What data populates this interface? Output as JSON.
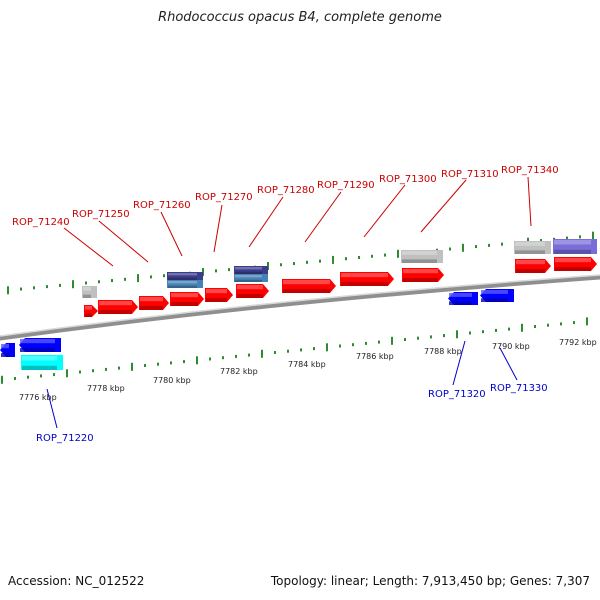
{
  "title": "Rhodococcus opacus B4, complete genome",
  "footer": {
    "accession": "Accession: NC_012522",
    "summary": "Topology: linear; Length: 7,913,450 bp; Genes: 7,307"
  },
  "colors": {
    "forward_gene": "#ff0000",
    "reverse_gene": "#0000ff",
    "cyan_feature": "#00ffff",
    "gray_feature": "#c0c0c0",
    "navy_feature": "#3c3c8c",
    "steel_feature": "#4682b4",
    "violet_feature": "#7a6cd9",
    "tick": "#2e8b2e",
    "forward_label": "#cc0000",
    "reverse_label": "#0000cc"
  },
  "ruler_labels": [
    "7776 kbp",
    "7778 kbp",
    "7780 kbp",
    "7782 kbp",
    "7784 kbp",
    "7786 kbp",
    "7788 kbp",
    "7790 kbp",
    "7792 kbp"
  ],
  "forward_labels": [
    "ROP_71240",
    "ROP_71250",
    "ROP_71260",
    "ROP_71270",
    "ROP_71280",
    "ROP_71290",
    "ROP_71300",
    "ROP_71310",
    "ROP_71340"
  ],
  "reverse_labels": [
    "ROP_71220",
    "ROP_71320",
    "ROP_71330"
  ]
}
